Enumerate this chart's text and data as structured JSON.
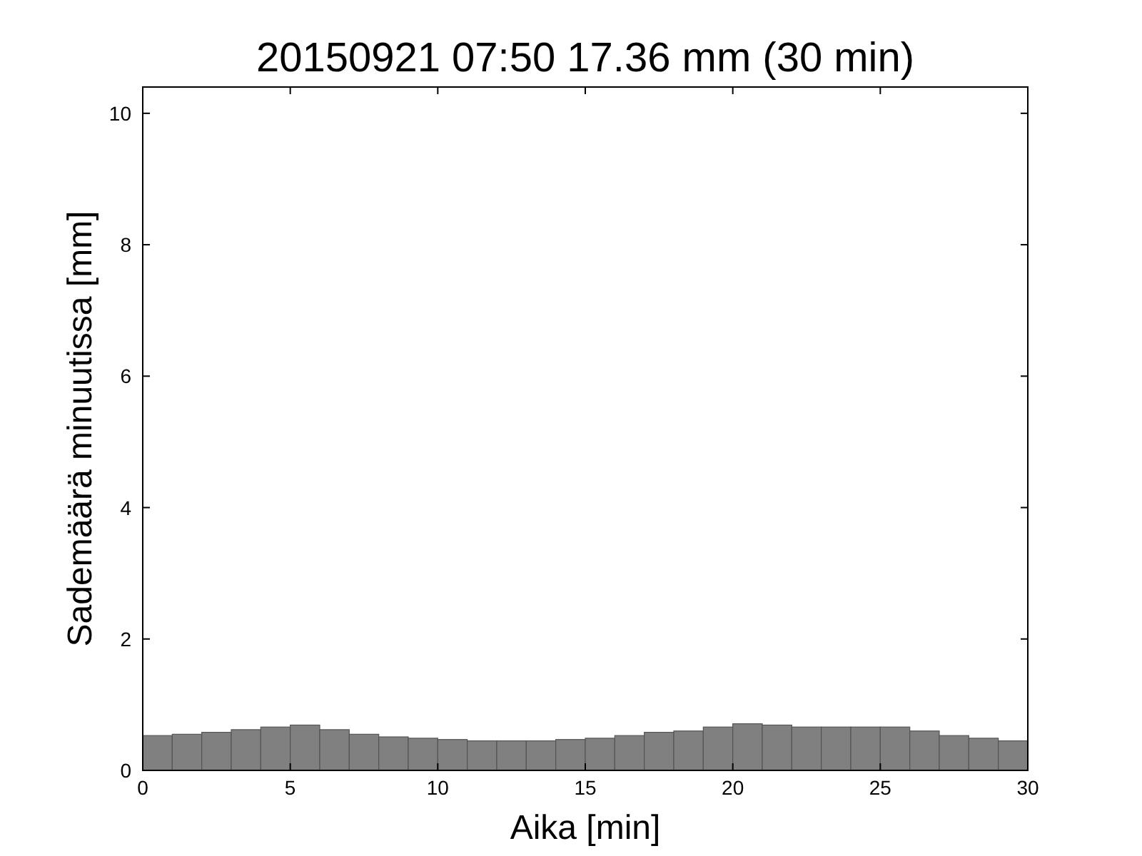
{
  "chart_data": {
    "type": "histogram",
    "title": "20150921 07:50 17.36 mm (30 min)",
    "xlabel": "Aika [min]",
    "ylabel": "Sademäärä minuutissa [mm]",
    "bins": [
      0,
      1,
      2,
      3,
      4,
      5,
      6,
      7,
      8,
      9,
      10,
      11,
      12,
      13,
      14,
      15,
      16,
      17,
      18,
      19,
      20,
      21,
      22,
      23,
      24,
      25,
      26,
      27,
      28,
      29,
      30
    ],
    "values": [
      0.53,
      0.55,
      0.58,
      0.62,
      0.66,
      0.69,
      0.62,
      0.55,
      0.51,
      0.49,
      0.47,
      0.45,
      0.45,
      0.45,
      0.47,
      0.49,
      0.53,
      0.58,
      0.6,
      0.66,
      0.71,
      0.69,
      0.66,
      0.66,
      0.66,
      0.66,
      0.6,
      0.53,
      0.49,
      0.45
    ],
    "color": "#808080",
    "xlim": [
      0,
      30
    ],
    "ylim": [
      0,
      10.4
    ],
    "xticks": [
      0,
      5,
      10,
      15,
      20,
      25,
      30
    ],
    "yticks": [
      0,
      2,
      4,
      6,
      8,
      10
    ],
    "grid": false
  }
}
